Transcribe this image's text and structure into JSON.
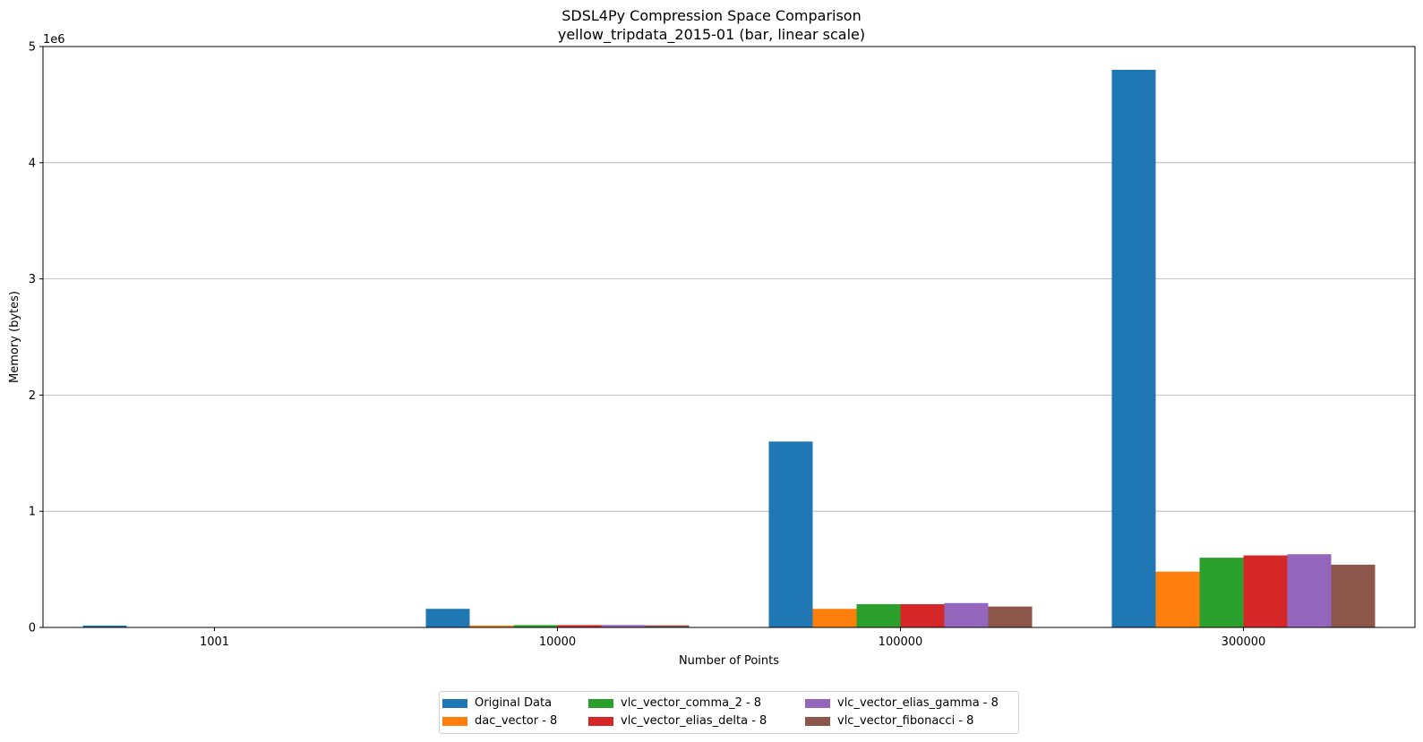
{
  "chart_data": {
    "type": "bar",
    "title": "SDSL4Py Compression Space Comparison",
    "subtitle": "yellow_tripdata_2015-01 (bar, linear scale)",
    "xlabel": "Number of Points",
    "ylabel": "Memory (bytes)",
    "y_scale_label": "1e6",
    "ylim": [
      0,
      5000000
    ],
    "yticks": [
      0,
      1000000,
      2000000,
      3000000,
      4000000,
      5000000
    ],
    "ytick_labels": [
      "0",
      "1",
      "2",
      "3",
      "4",
      "5"
    ],
    "grid": "horizontal",
    "legend_position": "bottom-center",
    "categories": [
      "1001",
      "10000",
      "100000",
      "300000"
    ],
    "series": [
      {
        "name": "Original Data",
        "color": "#1f77b4",
        "values": [
          16000,
          160000,
          1600000,
          4800000
        ]
      },
      {
        "name": "dac_vector - 8",
        "color": "#ff7f0e",
        "values": [
          1600,
          16000,
          160000,
          480000
        ]
      },
      {
        "name": "vlc_vector_comma_2 - 8",
        "color": "#2ca02c",
        "values": [
          2000,
          20000,
          200000,
          600000
        ]
      },
      {
        "name": "vlc_vector_elias_delta - 8",
        "color": "#d62728",
        "values": [
          2000,
          20000,
          200000,
          620000
        ]
      },
      {
        "name": "vlc_vector_elias_gamma - 8",
        "color": "#9467bd",
        "values": [
          2100,
          21000,
          210000,
          630000
        ]
      },
      {
        "name": "vlc_vector_fibonacci - 8",
        "color": "#8c564b",
        "values": [
          1800,
          18000,
          180000,
          540000
        ]
      }
    ]
  }
}
